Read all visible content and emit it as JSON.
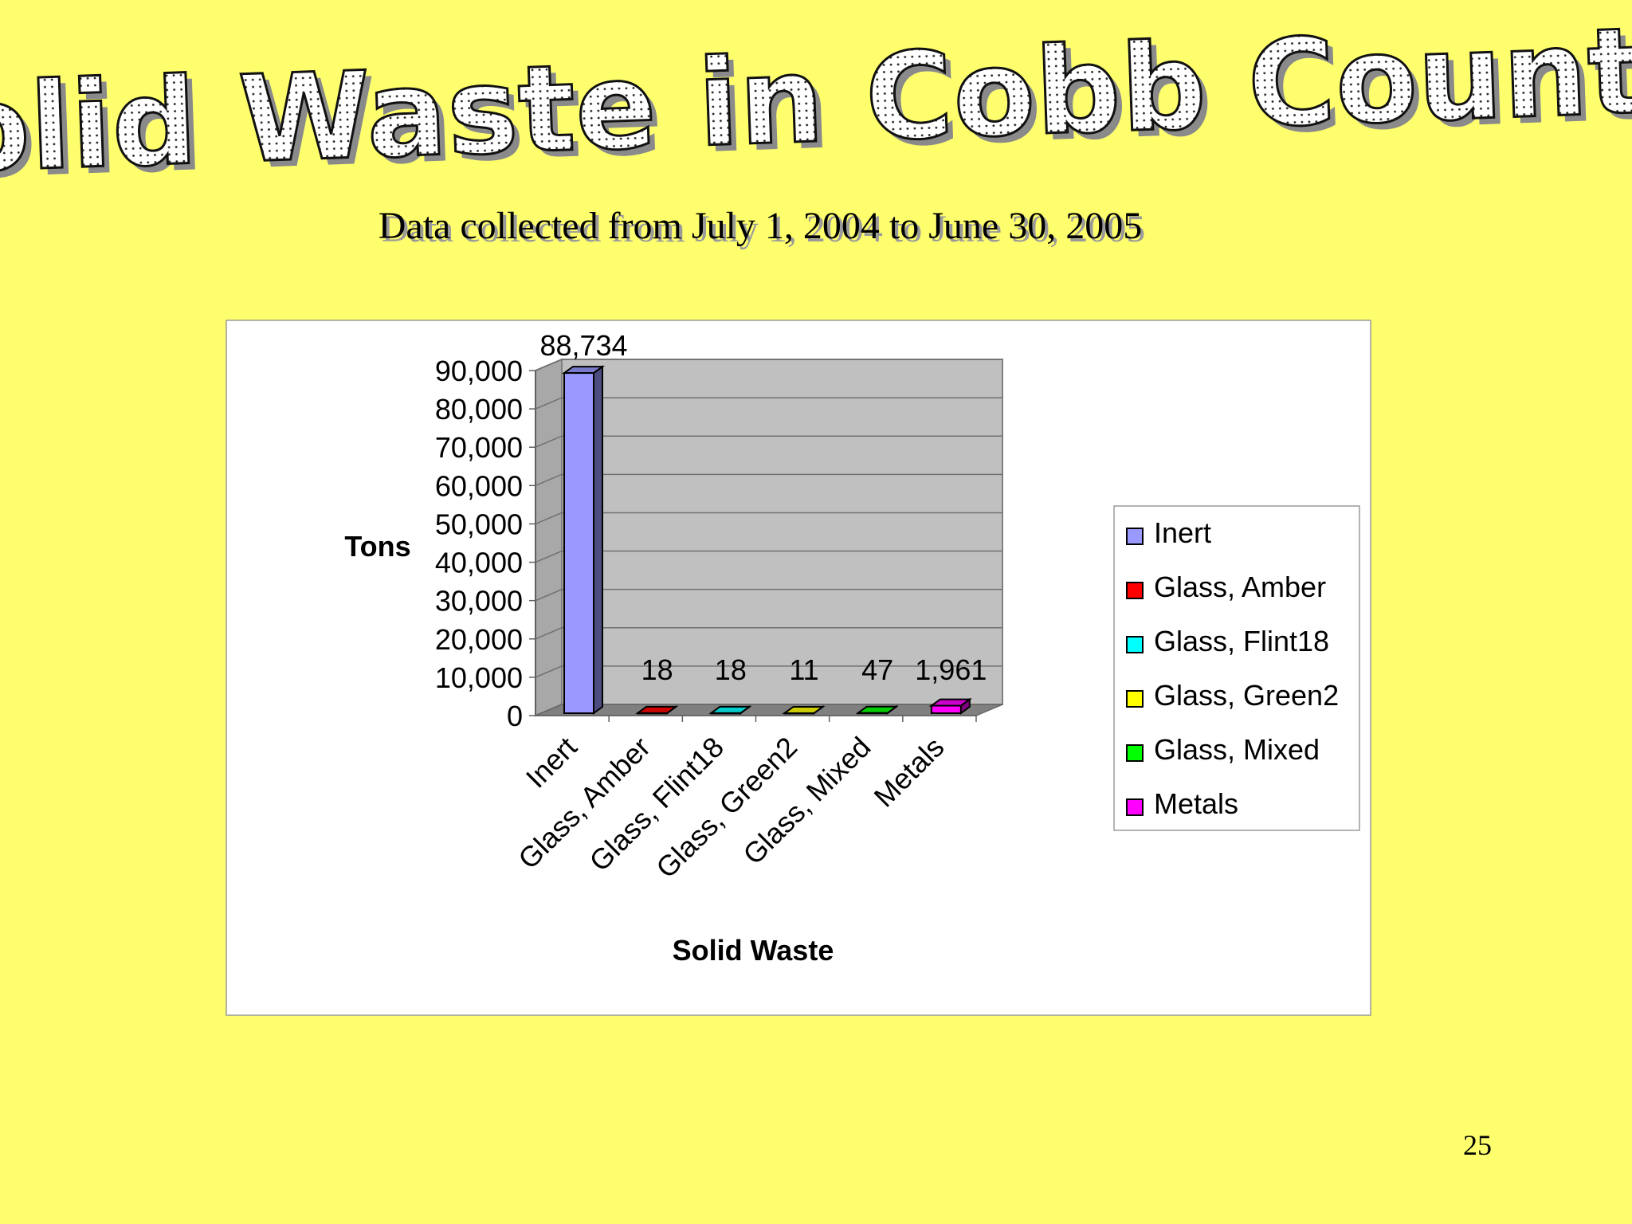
{
  "slide": {
    "title": "Solid Waste in Cobb County",
    "subtitle": "Data collected from July 1, 2004 to June 30, 2005",
    "page_number": "25",
    "background_color": "#ffff6e"
  },
  "chart_data": {
    "type": "bar",
    "title": "",
    "xlabel": "Solid Waste",
    "ylabel": "Tons",
    "categories": [
      "Inert",
      "Glass, Amber",
      "Glass, Flint18",
      "Glass, Green2",
      "Glass, Mixed",
      "Metals"
    ],
    "values": [
      88734,
      18,
      18,
      11,
      47,
      1961
    ],
    "data_labels": [
      "88,734",
      "18",
      "18",
      "11",
      "47",
      "1,961"
    ],
    "colors": [
      "#9999ff",
      "#ff0000",
      "#00ffff",
      "#ffff00",
      "#00ff00",
      "#ff00ff"
    ],
    "ylim": [
      0,
      90000
    ],
    "yticks": [
      0,
      10000,
      20000,
      30000,
      40000,
      50000,
      60000,
      70000,
      80000,
      90000
    ],
    "ytick_labels": [
      "0",
      "10,000",
      "20,000",
      "30,000",
      "40,000",
      "50,000",
      "60,000",
      "70,000",
      "80,000",
      "90,000"
    ],
    "legend": {
      "placement": "right",
      "entries": [
        "Inert",
        "Glass, Amber",
        "Glass, Flint18",
        "Glass, Green2",
        "Glass, Mixed",
        "Metals"
      ]
    },
    "grid": true,
    "style": "3d-column"
  }
}
